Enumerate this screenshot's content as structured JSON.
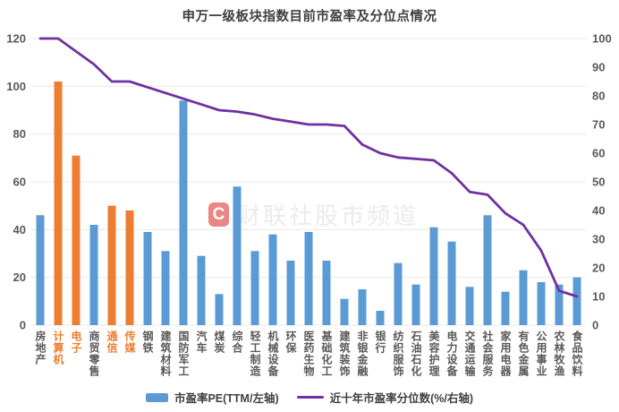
{
  "title": "申万一级板块指数目前市盈率及分位点情况",
  "watermark": {
    "logo_letter": "C",
    "text": "财联社股市频道"
  },
  "legend": [
    {
      "label": "市盈率PE(TTM/左轴)",
      "type": "bar",
      "color": "#5B9BD5"
    },
    {
      "label": "近十年市盈率分位数(%/右轴)",
      "type": "line",
      "color": "#7030A0"
    }
  ],
  "colors": {
    "bar_default": "#5B9BD5",
    "bar_highlight": "#ED7D31",
    "line": "#7030A0",
    "grid": "#e9e9e9",
    "axis_text": "#595959",
    "category_text": "#595959"
  },
  "chart_data": {
    "type": "bar",
    "subtype": "combo-bar-line",
    "title": "申万一级板块指数目前市盈率及分位点情况",
    "grid": true,
    "legend_position": "bottom",
    "categories": [
      "房地产",
      "计算机",
      "电子",
      "商贸零售",
      "通信",
      "传媒",
      "钢铁",
      "建筑材料",
      "国防军工",
      "汽车",
      "煤炭",
      "综合",
      "轻工制造",
      "机械设备",
      "环保",
      "医药生物",
      "基础化工",
      "建筑装饰",
      "非银金融",
      "银行",
      "纺织服饰",
      "石油石化",
      "美容护理",
      "电力设备",
      "交通运输",
      "社会服务",
      "家用电器",
      "有色金属",
      "公用事业",
      "农林牧渔",
      "食品饮料"
    ],
    "series": [
      {
        "name": "市盈率PE(TTM/左轴)",
        "type": "bar",
        "axis": "left",
        "values": [
          46,
          102,
          71,
          42,
          50,
          48,
          39,
          31,
          94,
          29,
          13,
          58,
          31,
          38,
          27,
          39,
          27,
          11,
          15,
          6,
          26,
          17,
          41,
          35,
          16,
          46,
          14,
          23,
          18,
          17,
          20
        ],
        "highlight_indices": [
          1,
          2,
          4,
          5
        ]
      },
      {
        "name": "近十年市盈率分位数(%/右轴)",
        "type": "line",
        "axis": "right",
        "values": [
          100,
          100,
          95.5,
          91,
          85,
          85,
          83,
          81,
          79,
          77,
          75,
          74.5,
          73.5,
          72,
          71,
          70,
          70,
          69.5,
          63,
          60,
          58.5,
          58,
          57.5,
          53,
          46.5,
          45.5,
          39,
          35,
          26,
          12,
          10
        ]
      }
    ],
    "left_axis": {
      "min": 0,
      "max": 120,
      "step": 20,
      "ticks": [
        0,
        20,
        40,
        60,
        80,
        100,
        120
      ]
    },
    "right_axis": {
      "min": 0,
      "max": 100,
      "step": 10,
      "ticks": [
        0,
        10,
        20,
        30,
        40,
        50,
        60,
        70,
        80,
        90,
        100
      ]
    }
  }
}
